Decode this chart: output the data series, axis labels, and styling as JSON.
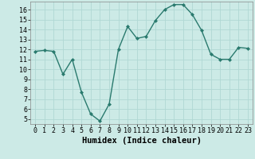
{
  "x": [
    0,
    1,
    2,
    3,
    4,
    5,
    6,
    7,
    8,
    9,
    10,
    11,
    12,
    13,
    14,
    15,
    16,
    17,
    18,
    19,
    20,
    21,
    22,
    23
  ],
  "y": [
    11.8,
    11.9,
    11.8,
    9.5,
    11.0,
    7.7,
    5.5,
    4.8,
    6.5,
    12.0,
    14.3,
    13.1,
    13.3,
    14.9,
    16.0,
    16.5,
    16.5,
    15.5,
    13.9,
    11.5,
    11.0,
    11.0,
    12.2,
    12.1
  ],
  "xlabel": "Humidex (Indice chaleur)",
  "ylim": [
    4.5,
    16.8
  ],
  "xlim": [
    -0.5,
    23.5
  ],
  "yticks": [
    5,
    6,
    7,
    8,
    9,
    10,
    11,
    12,
    13,
    14,
    15,
    16
  ],
  "xticks": [
    0,
    1,
    2,
    3,
    4,
    5,
    6,
    7,
    8,
    9,
    10,
    11,
    12,
    13,
    14,
    15,
    16,
    17,
    18,
    19,
    20,
    21,
    22,
    23
  ],
  "line_color": "#2a7a6e",
  "marker_color": "#2a7a6e",
  "bg_color": "#cceae6",
  "grid_color": "#b0d8d4",
  "xlabel_fontsize": 7.5,
  "tick_fontsize": 6.0
}
